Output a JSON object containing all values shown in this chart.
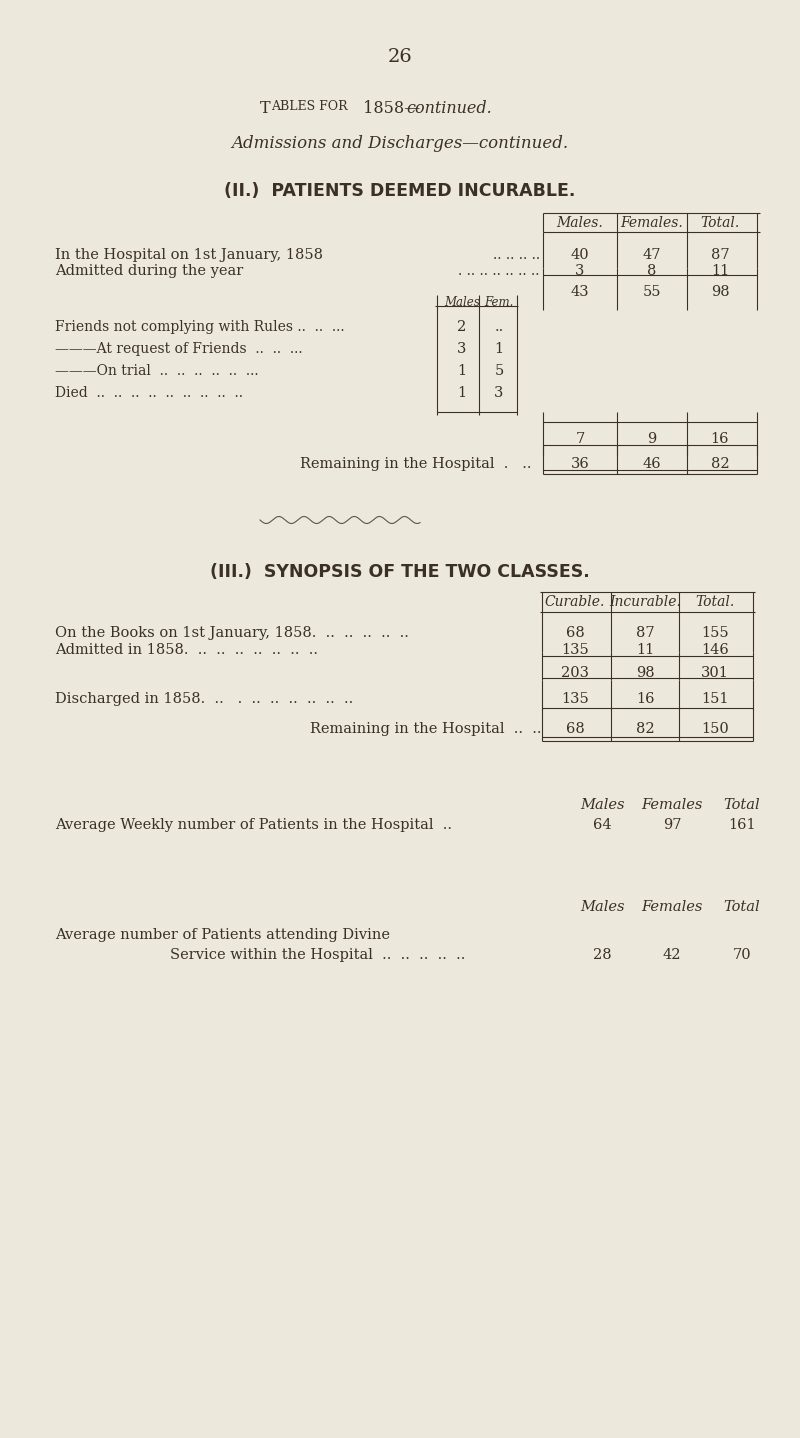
{
  "bg_color": "#ede8dc",
  "text_color": "#3a3028",
  "page_number": "26",
  "section2_header": "(II.)  PATIENTS DEEMED INCURABLE.",
  "col_headers_II": [
    "Males.",
    "Females.",
    "Total."
  ],
  "row1_label": "In the Hospital on 1st January, 1858",
  "row1_dots": ".. .. .. ..",
  "row1_vals": [
    "40",
    "47",
    "87"
  ],
  "row2_label": "Admitted during the year",
  "row2_dots": ". .. .. .. .. .. ..",
  "row2_vals": [
    "3",
    "8",
    "11"
  ],
  "subtotal_vals": [
    "43",
    "55",
    "98"
  ],
  "inner_col_headers": [
    "Males",
    "Fem."
  ],
  "discharge_rows": [
    {
      "label": "Friends not complying with Rules ..  ..  ...",
      "m": "2",
      "f": ".."
    },
    {
      "label": "———At request of Friends  ..  ..  ...",
      "m": "3",
      "f": "1"
    },
    {
      "label": "———On trial  ..  ..  ..  ..  ..  ...",
      "m": "1",
      "f": "5"
    },
    {
      "label": "Died  ..  ..  ..  ..  ..  ..  ..  ..  ..",
      "m": "1",
      "f": "3"
    }
  ],
  "discharge_total_vals": [
    "7",
    "9",
    "16"
  ],
  "remaining_label": "Remaining in the Hospital",
  "remaining_dots": ".   ..",
  "remaining_vals": [
    "36",
    "46",
    "82"
  ],
  "section3_header": "(III.)  SYNOPSIS OF THE TWO CLASSES.",
  "col_headers_III": [
    "Curable.",
    "Incurable.",
    "Total."
  ],
  "syn_row1_label": "On the Books on 1st January, 1858.  ..  ..  ..  ..  ..",
  "syn_row1_vals": [
    "68",
    "87",
    "155"
  ],
  "syn_row2_label": "Admitted in 1858.",
  "syn_row2_dots": "  ..  ..  ..  ..  ..  ..  ..",
  "syn_row2_vals": [
    "135",
    "11",
    "146"
  ],
  "syn_subtotal": [
    "203",
    "98",
    "301"
  ],
  "syn_discharged_label": "Discharged in 1858.",
  "syn_discharged_dots": "  ..   .  ..  ..  ..  ..  ..  ..",
  "syn_discharged_vals": [
    "135",
    "16",
    "151"
  ],
  "syn_remaining_label": "Remaining in the Hospital",
  "syn_remaining_dots": "  ..  ..",
  "syn_remaining_vals": [
    "68",
    "82",
    "150"
  ],
  "avg_weekly_header": [
    "Males",
    "Females",
    "Total"
  ],
  "avg_weekly_label": "Average Weekly number of Patients in the Hospital",
  "avg_weekly_dots": "  ..",
  "avg_weekly_vals": [
    "64",
    "97",
    "161"
  ],
  "avg_divine_header": [
    "Males",
    "Females",
    "Total"
  ],
  "avg_divine_label1": "Average number of Patients attending Divine",
  "avg_divine_label2": "Service within the Hospital  ..  ..  ..  ..  ..",
  "avg_divine_vals": [
    "28",
    "42",
    "70"
  ]
}
